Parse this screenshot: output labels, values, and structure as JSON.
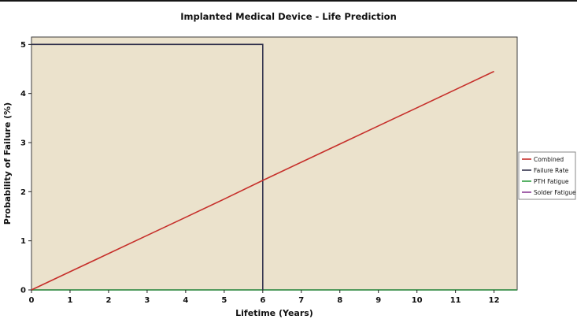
{
  "page": {
    "background": "#ffffff"
  },
  "chart_data": {
    "type": "line",
    "title": "Implanted Medical Device - Life Prediction",
    "xlabel": "Lifetime (Years)",
    "ylabel": "Probability of Failure (%)",
    "xlim": [
      0,
      12.6
    ],
    "ylim": [
      0,
      5.15
    ],
    "x_ticks": [
      0,
      1,
      2,
      3,
      4,
      5,
      6,
      7,
      8,
      9,
      10,
      11,
      12
    ],
    "y_ticks": [
      0,
      1,
      2,
      3,
      4,
      5
    ],
    "grid": false,
    "plot_bg": "#ebe2cc",
    "frame_color": "#3c3c3c",
    "legend_position": "right",
    "legend_bg": "#ffffff",
    "legend_border": "#8a8a8a",
    "series": [
      {
        "name": "Combined",
        "color": "#c62f2a",
        "points": [
          [
            0,
            0
          ],
          [
            1,
            0.37
          ],
          [
            2,
            0.74
          ],
          [
            3,
            1.11
          ],
          [
            4,
            1.48
          ],
          [
            5,
            1.85
          ],
          [
            6,
            2.23
          ],
          [
            7,
            2.6
          ],
          [
            8,
            2.97
          ],
          [
            9,
            3.34
          ],
          [
            10,
            3.71
          ],
          [
            11,
            4.08
          ],
          [
            12,
            4.45
          ]
        ]
      },
      {
        "name": "Failure Rate",
        "color": "#34344e",
        "points": [
          [
            0,
            5
          ],
          [
            6,
            5
          ],
          [
            6,
            0
          ]
        ]
      },
      {
        "name": "PTH Fatigue",
        "color": "#2f9e41",
        "points": [
          [
            0,
            0
          ],
          [
            12.6,
            0
          ]
        ]
      },
      {
        "name": "Solder Fatigue",
        "color": "#8e3f97",
        "points": [
          [
            0,
            0
          ],
          [
            12.6,
            0
          ]
        ]
      }
    ]
  }
}
